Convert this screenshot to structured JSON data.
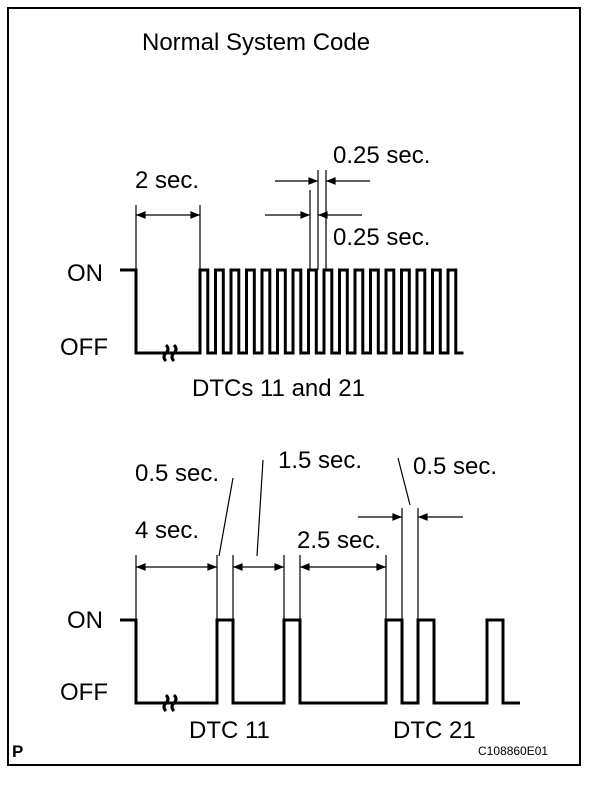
{
  "title": "Normal System Code",
  "top_diagram": {
    "on_label": "ON",
    "off_label": "OFF",
    "caption": "DTCs 11 and 21",
    "annotations": [
      "2 sec.",
      "0.25 sec.",
      "0.25 sec."
    ]
  },
  "bottom_diagram": {
    "on_label": "ON",
    "off_label": "OFF",
    "captions": [
      "DTC 11",
      "DTC 21"
    ],
    "annotations": [
      "0.5 sec.",
      "1.5 sec.",
      "0.5 sec.",
      "4 sec.",
      "2.5 sec."
    ]
  },
  "footer": {
    "page_marker": "P",
    "figure_id": "C108860E01"
  }
}
